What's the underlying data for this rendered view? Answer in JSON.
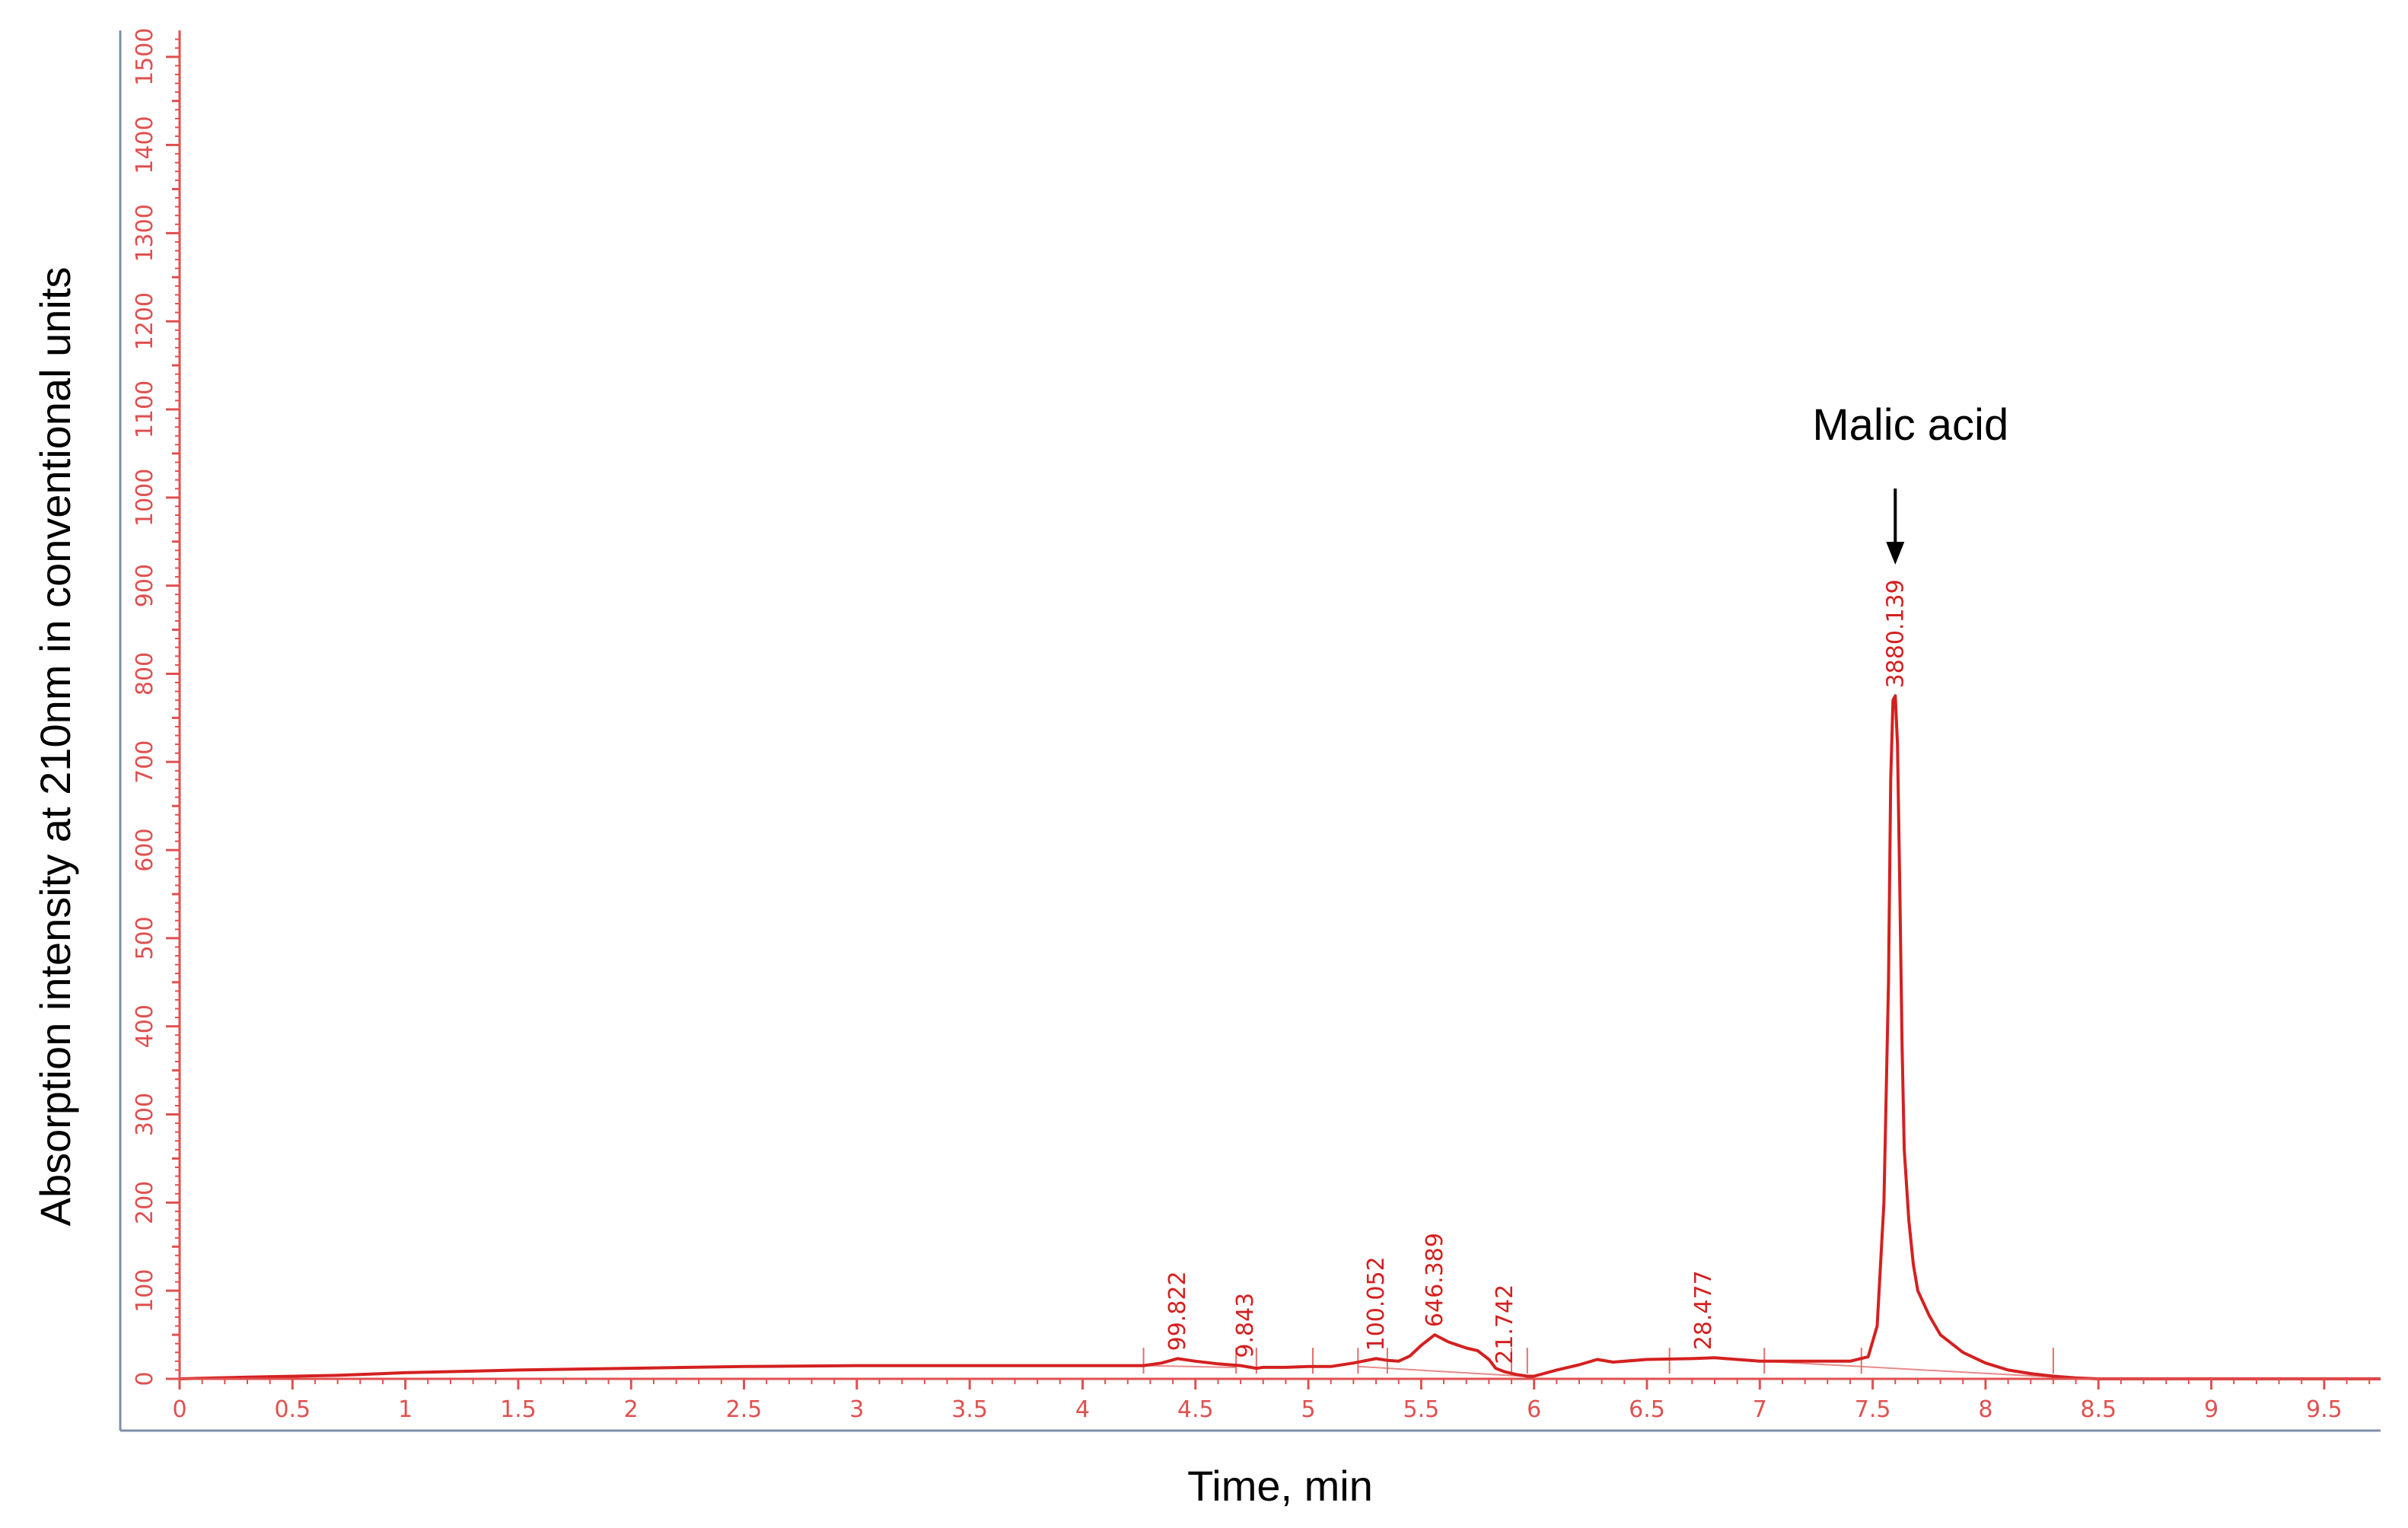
{
  "chart_data": {
    "type": "line",
    "title": "",
    "xlabel": "Time, min",
    "ylabel": "Absorption intensity at 210nm in conventional units",
    "xlim": [
      0,
      9.75
    ],
    "ylim": [
      0,
      1530
    ],
    "x_ticks": [
      0,
      0.5,
      1,
      1.5,
      2,
      2.5,
      3,
      3.5,
      4,
      4.5,
      5,
      5.5,
      6,
      6.5,
      7,
      7.5,
      8,
      8.5,
      9,
      9.5
    ],
    "x_tick_labels": [
      "0",
      "0.5",
      "1",
      "1.5",
      "2",
      "2.5",
      "3",
      "3.5",
      "4",
      "4.5",
      "5",
      "5.5",
      "6",
      "6.5",
      "7",
      "7.5",
      "8",
      "8.5",
      "9",
      "9.5"
    ],
    "y_ticks": [
      0,
      50,
      100,
      150,
      200,
      250,
      300,
      350,
      400,
      450,
      500,
      550,
      600,
      650,
      700,
      750,
      800,
      850,
      900,
      950,
      1000,
      1050,
      1100,
      1150,
      1200,
      1250,
      1300,
      1350,
      1400,
      1450,
      1500
    ],
    "y_tick_labels": [
      "0",
      "",
      "100",
      "",
      "200",
      "",
      "300",
      "",
      "400",
      "",
      "500",
      "",
      "600",
      "",
      "700",
      "",
      "800",
      "",
      "900",
      "",
      "1000",
      "",
      "1100",
      "",
      "1200",
      "",
      "1300",
      "",
      "1400",
      "",
      "1500"
    ],
    "series": [
      {
        "x": [
          0,
          0.3,
          0.7,
          1.0,
          1.5,
          2.0,
          2.5,
          3.0,
          3.5,
          4.0,
          4.27,
          4.35,
          4.42,
          4.5,
          4.6,
          4.7,
          4.77,
          4.8,
          4.9,
          5.0,
          5.1,
          5.2,
          5.3,
          5.35,
          5.4,
          5.45,
          5.5,
          5.56,
          5.62,
          5.7,
          5.75,
          5.8,
          5.83,
          5.87,
          5.92,
          5.97,
          6.0,
          6.1,
          6.2,
          6.28,
          6.35,
          6.5,
          6.7,
          6.8,
          7.0,
          7.2,
          7.4,
          7.48,
          7.52,
          7.55,
          7.57,
          7.58,
          7.59,
          7.6,
          7.61,
          7.62,
          7.63,
          7.64,
          7.66,
          7.68,
          7.7,
          7.75,
          7.8,
          7.9,
          8.0,
          8.1,
          8.2,
          8.3,
          8.4,
          8.5,
          9.0,
          9.5,
          9.75
        ],
        "y": [
          0,
          2,
          4,
          7,
          10,
          12,
          14,
          15,
          15,
          15,
          15,
          18,
          23,
          20,
          17,
          15,
          12,
          13,
          13,
          14,
          14,
          18,
          23,
          21,
          20,
          26,
          38,
          50,
          42,
          35,
          32,
          22,
          12,
          8,
          5,
          3,
          3,
          10,
          16,
          22,
          19,
          22,
          23,
          24,
          20,
          20,
          20,
          25,
          60,
          200,
          450,
          680,
          770,
          775,
          720,
          560,
          380,
          260,
          180,
          130,
          100,
          72,
          50,
          30,
          18,
          10,
          6,
          3,
          1,
          0,
          0,
          0,
          0
        ]
      }
    ],
    "baselines": [
      [
        [
          4.27,
          15
        ],
        [
          4.68,
          13
        ]
      ],
      [
        [
          5.22,
          14
        ],
        [
          5.95,
          3
        ]
      ],
      [
        [
          7.02,
          20
        ],
        [
          8.3,
          2
        ]
      ]
    ],
    "peak_labels": [
      {
        "x": 4.42,
        "y": 23,
        "text": "99.822"
      },
      {
        "x": 4.72,
        "y": 15,
        "text": "9.843"
      },
      {
        "x": 5.3,
        "y": 23,
        "text": "100.052"
      },
      {
        "x": 5.56,
        "y": 50,
        "text": "646.389"
      },
      {
        "x": 5.87,
        "y": 8,
        "text": "21.742"
      },
      {
        "x": 6.75,
        "y": 24,
        "text": "28.477"
      },
      {
        "x": 7.6,
        "y": 775,
        "text": "3880.139"
      }
    ],
    "integration_marks": [
      4.27,
      4.68,
      4.77,
      5.02,
      5.22,
      5.35,
      5.9,
      5.97,
      6.6,
      7.02,
      7.45,
      8.3
    ],
    "annotation": {
      "text": "Malic acid",
      "x": 7.6
    },
    "grid": false,
    "legend": "none",
    "colors": {
      "trace": "#d42020",
      "axis": "#e05050",
      "frame": "#7f8fa8",
      "text": "#000000"
    }
  }
}
